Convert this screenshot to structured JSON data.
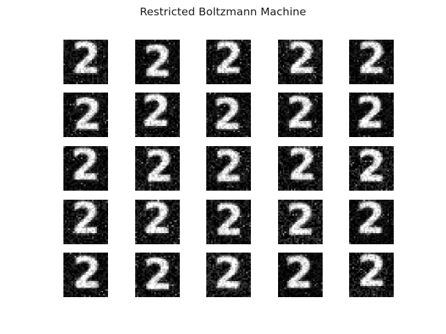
{
  "figure": {
    "title": "Restricted Boltzmann Machine"
  },
  "grid": {
    "rows": 5,
    "cols": 5,
    "digit": "2",
    "colormap": "grayscale"
  }
}
